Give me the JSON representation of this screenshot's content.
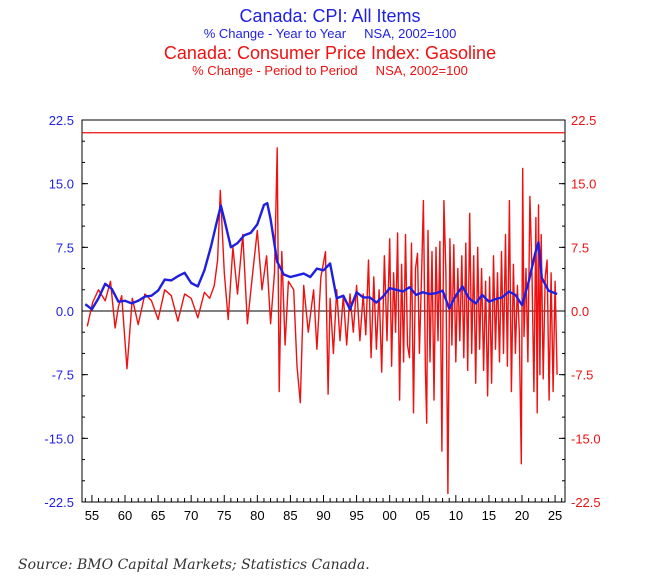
{
  "titles": {
    "blue_title": "Canada: CPI: All Items",
    "blue_subtitle": "% Change - Year to Year     NSA, 2002=100",
    "red_title": "Canada: Consumer Price Index: Gasoline",
    "red_subtitle": "% Change - Period to Period     NSA, 2002=100"
  },
  "source": "Source: BMO Capital Markets; Statistics Canada.",
  "colors": {
    "cpi": "#1f1fe0",
    "gasoline": "#ee1111",
    "axis_left": "#1f1fe0",
    "axis_right": "#ee1111"
  },
  "chart_data": {
    "type": "line",
    "ylim": [
      -22.5,
      22.5
    ],
    "xlim": [
      1953.5,
      2026.5
    ],
    "y_ticks": [
      "22.5",
      "15.0",
      "7.5",
      "0.0",
      "-7.5",
      "-15.0",
      "-22.5"
    ],
    "x_ticks": [
      "55",
      "60",
      "65",
      "70",
      "75",
      "80",
      "85",
      "90",
      "95",
      "00",
      "05",
      "10",
      "15",
      "20",
      "25"
    ],
    "reference_line": 21,
    "series": [
      {
        "name": "Canada: CPI: All Items (% Change - Year to Year)",
        "axis": "left",
        "x": [
          1954,
          1955,
          1956,
          1957,
          1958,
          1959,
          1960,
          1961,
          1962,
          1963,
          1964,
          1965,
          1966,
          1967,
          1968,
          1969,
          1970,
          1971,
          1972,
          1973,
          1974,
          1974.5,
          1975,
          1976,
          1977,
          1978,
          1979,
          1980,
          1981,
          1981.5,
          1982,
          1983,
          1984,
          1985,
          1986,
          1987,
          1988,
          1989,
          1990,
          1991,
          1992,
          1993,
          1994,
          1995,
          1996,
          1997,
          1998,
          1999,
          2000,
          2001,
          2002,
          2003,
          2004,
          2005,
          2006,
          2007,
          2008,
          2009,
          2010,
          2011,
          2012,
          2013,
          2014,
          2015,
          2016,
          2017,
          2018,
          2019,
          2020,
          2021,
          2022,
          2022.5,
          2023,
          2024,
          2025.3
        ],
        "values": [
          0.8,
          0.2,
          1.5,
          3.2,
          2.6,
          1.1,
          1.2,
          0.9,
          1.2,
          1.7,
          1.8,
          2.4,
          3.7,
          3.6,
          4.1,
          4.5,
          3.3,
          2.9,
          4.8,
          7.6,
          10.9,
          12.4,
          10.8,
          7.5,
          8.0,
          8.9,
          9.2,
          10.2,
          12.5,
          12.7,
          10.8,
          5.8,
          4.3,
          4.0,
          4.2,
          4.4,
          4.0,
          5.0,
          4.8,
          5.6,
          1.5,
          1.8,
          0.2,
          2.2,
          1.6,
          1.6,
          1.0,
          1.7,
          2.7,
          2.5,
          2.3,
          2.8,
          1.9,
          2.2,
          2.0,
          2.1,
          2.4,
          0.3,
          1.8,
          2.9,
          1.5,
          0.9,
          1.9,
          1.1,
          1.4,
          1.6,
          2.3,
          1.9,
          0.7,
          3.4,
          6.8,
          8.1,
          3.9,
          2.4,
          2.0
        ]
      },
      {
        "name": "Canada: Consumer Price Index: Gasoline (% Change - Period to Period)",
        "axis": "right",
        "x": [
          1954.3,
          1955.1,
          1956.0,
          1957.0,
          1957.8,
          1958.5,
          1959.0,
          1959.5,
          1960.3,
          1961.1,
          1962.0,
          1963.0,
          1964.0,
          1965.0,
          1966.0,
          1967.0,
          1968.0,
          1969.0,
          1970.0,
          1971.0,
          1972.0,
          1972.8,
          1973.5,
          1974.0,
          1974.4,
          1975.0,
          1975.6,
          1976.3,
          1977.0,
          1977.8,
          1978.5,
          1979.3,
          1980.0,
          1980.7,
          1981.4,
          1982.0,
          1982.6,
          1983.0,
          1983.3,
          1983.7,
          1984.2,
          1984.7,
          1985.5,
          1986.0,
          1986.5,
          1987.0,
          1987.7,
          1988.5,
          1989.0,
          1989.6,
          1990.3,
          1990.7,
          1991.0,
          1991.5,
          1992.0,
          1992.5,
          1993.0,
          1993.5,
          1994.0,
          1994.5,
          1995.0,
          1995.5,
          1996.0,
          1996.4,
          1996.8,
          1997.2,
          1997.6,
          1998.0,
          1998.4,
          1998.8,
          1999.2,
          1999.6,
          2000.0,
          2000.3,
          2000.6,
          2000.9,
          2001.2,
          2001.5,
          2001.8,
          2002.1,
          2002.4,
          2002.7,
          2003.0,
          2003.3,
          2003.6,
          2003.9,
          2004.2,
          2004.5,
          2004.8,
          2005.1,
          2005.4,
          2005.6,
          2005.8,
          2006.1,
          2006.4,
          2006.7,
          2007.0,
          2007.3,
          2007.6,
          2007.9,
          2008.2,
          2008.5,
          2008.8,
          2009.1,
          2009.4,
          2009.7,
          2010.0,
          2010.3,
          2010.6,
          2010.9,
          2011.2,
          2011.5,
          2011.8,
          2012.1,
          2012.4,
          2012.7,
          2013.0,
          2013.3,
          2013.6,
          2013.9,
          2014.2,
          2014.5,
          2014.8,
          2015.1,
          2015.4,
          2015.7,
          2016.0,
          2016.3,
          2016.6,
          2016.9,
          2017.2,
          2017.5,
          2017.8,
          2018.1,
          2018.4,
          2018.7,
          2019.0,
          2019.3,
          2019.6,
          2019.9,
          2020.1,
          2020.3,
          2020.6,
          2020.9,
          2021.2,
          2021.5,
          2021.8,
          2022.1,
          2022.3,
          2022.5,
          2022.7,
          2022.9,
          2023.2,
          2023.5,
          2023.8,
          2024.1,
          2024.4,
          2024.7,
          2025.0,
          2025.3
        ],
        "values": [
          -1.8,
          1.0,
          2.5,
          1.2,
          3.5,
          -2.0,
          0.5,
          1.8,
          -6.8,
          1.5,
          -1.6,
          2.0,
          1.2,
          -1.0,
          2.5,
          1.8,
          -1.2,
          2.0,
          1.5,
          -0.8,
          2.2,
          1.5,
          3.0,
          6.0,
          14.2,
          4.5,
          -1.0,
          7.5,
          2.0,
          9.0,
          -1.5,
          4.5,
          9.5,
          2.5,
          6.5,
          -1.5,
          4.5,
          19.2,
          -9.5,
          7.0,
          -4.0,
          3.5,
          2.5,
          -6.5,
          -10.8,
          3.0,
          -2.5,
          2.5,
          -4.5,
          4.0,
          7.0,
          -9.8,
          1.5,
          -5.0,
          2.5,
          -3.5,
          1.8,
          -4.0,
          2.0,
          -2.5,
          3.0,
          -3.5,
          2.0,
          -2.8,
          6.0,
          -5.5,
          4.0,
          -4.5,
          2.5,
          -7.2,
          6.5,
          -3.5,
          8.5,
          -6.5,
          4.5,
          -2.5,
          9.2,
          -10.5,
          5.5,
          -6.0,
          9.0,
          -4.0,
          -5.5,
          8.0,
          -12.0,
          5.0,
          6.8,
          -5.0,
          3.5,
          13.0,
          -7.0,
          -13.2,
          9.5,
          -6.0,
          7.0,
          -10.5,
          7.5,
          -3.5,
          8.2,
          -16.5,
          13.0,
          4.5,
          -21.5,
          8.5,
          -4.0,
          7.8,
          -6.0,
          5.0,
          -3.5,
          6.5,
          -5.5,
          8.0,
          -7.0,
          11.5,
          -5.0,
          6.5,
          -8.5,
          7.5,
          -4.5,
          5.0,
          -7.0,
          3.5,
          -10.0,
          4.0,
          -8.5,
          6.5,
          -4.5,
          4.5,
          -6.0,
          7.0,
          -5.0,
          9.0,
          -6.5,
          13.0,
          -9.5,
          5.5,
          -5.0,
          3.0,
          -2.5,
          -18.0,
          16.8,
          -3.0,
          5.0,
          -6.0,
          13.5,
          5.0,
          -9.5,
          11.0,
          -12.0,
          12.5,
          -7.5,
          9.0,
          -8.0,
          4.0,
          6.0,
          -10.5,
          4.5,
          -9.5,
          3.5,
          -7.5
        ]
      }
    ]
  }
}
